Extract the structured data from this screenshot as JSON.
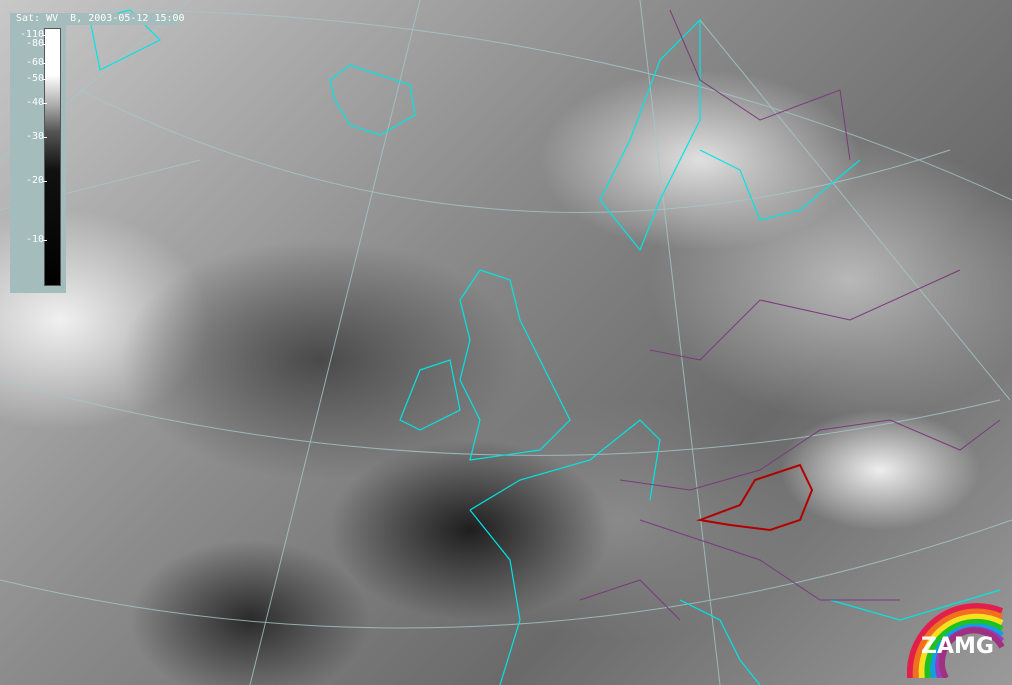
{
  "title": "Sat: WV  B, 2003-05-12 15:00",
  "legend": {
    "ticks": [
      {
        "label": "-110",
        "value": -110
      },
      {
        "label": "-80",
        "value": -80
      },
      {
        "label": "-60",
        "value": -60
      },
      {
        "label": "-50",
        "value": -50
      },
      {
        "label": "-40",
        "value": -40
      },
      {
        "label": "-30",
        "value": -30
      },
      {
        "label": "-20",
        "value": -20
      },
      {
        "label": "-10",
        "value": -10
      }
    ]
  },
  "colors": {
    "coastline": "#00e5e5",
    "borders": "#7a3a7a",
    "graticule": "#a5c8c8",
    "highlight_region": "#b00000"
  },
  "logo": {
    "text": "ZAMG"
  }
}
